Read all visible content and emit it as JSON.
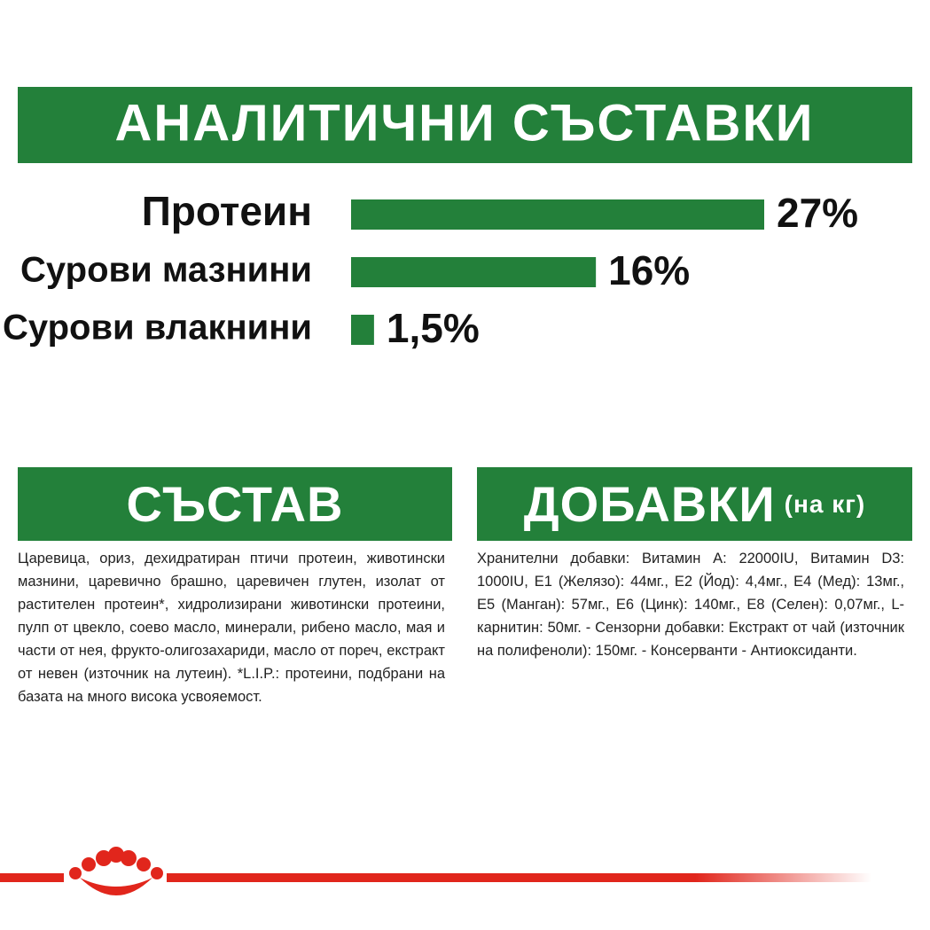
{
  "chart_data": {
    "type": "hbar",
    "title": "АНАЛИТИЧНИ СЪСТАВКИ",
    "categories": [
      "Протеин",
      "Сурови мазнини",
      "Сурови влакнини"
    ],
    "values": [
      27,
      16,
      1.5
    ],
    "value_labels": [
      "27%",
      "16%",
      "1,5%"
    ],
    "color": "#23803a"
  },
  "composition": {
    "title": "СЪСТАВ",
    "text": "Царевица, ориз, дехидратиран птичи протеин, животински мазнини, царевично брашно, царевичен глутен, изолат от растителен протеин*, хидролизирани животински протеини, пулп от цвекло, соево масло, минерали, рибено масло, мая и части от нея, фрукто-олигозахариди, масло от пореч, екстракт от невен (източник на лутеин). *L.I.P.: протеини, подбрани на базата на много висока усвояемост."
  },
  "additives": {
    "title": "ДОБАВКИ",
    "unit": "(на кг)",
    "text": "Хранителни добавки: Витамин A: 22000IU, Витамин D3: 1000IU, E1 (Желязо): 44мг., E2 (Йод): 4,4мг., E4 (Мед): 13мг., E5 (Манган): 57мг., E6 (Цинк): 140мг., E8 (Селен): 0,07мг., L-карнитин: 50мг. - Сензорни добавки: Екстракт от чай (източник на полифеноли): 150мг. - Консерванти - Антиоксиданти."
  }
}
